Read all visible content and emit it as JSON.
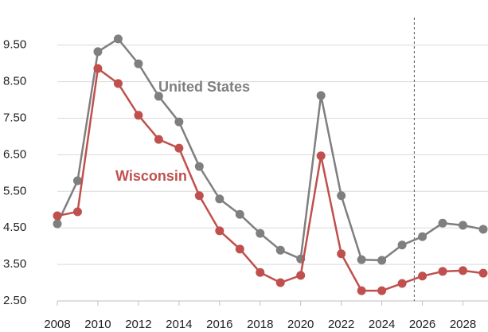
{
  "chart_data": {
    "type": "line",
    "x": [
      2008,
      2009,
      2010,
      2011,
      2012,
      2013,
      2014,
      2015,
      2016,
      2017,
      2018,
      2019,
      2020,
      2021,
      2022,
      2023,
      2024,
      2025,
      2026,
      2027,
      2028,
      2029
    ],
    "series": [
      {
        "name": "United States",
        "color": "#7f7f7f",
        "values": [
          4.61,
          5.79,
          9.32,
          9.67,
          8.99,
          8.1,
          7.4,
          6.18,
          5.29,
          4.87,
          4.35,
          3.89,
          3.65,
          8.12,
          5.38,
          3.63,
          3.61,
          4.03,
          4.26,
          4.63,
          4.57,
          4.46
        ]
      },
      {
        "name": "Wisconsin",
        "color": "#c0504d",
        "values": [
          4.83,
          4.94,
          8.86,
          8.45,
          7.58,
          6.92,
          6.68,
          5.38,
          4.42,
          3.92,
          3.28,
          3.0,
          3.2,
          6.47,
          3.79,
          2.78,
          2.78,
          2.98,
          3.18,
          3.31,
          3.33,
          3.26
        ]
      }
    ],
    "xlim": [
      2008,
      2029
    ],
    "xticks": [
      2008,
      2010,
      2012,
      2014,
      2016,
      2018,
      2020,
      2022,
      2024,
      2026,
      2028
    ],
    "ylim": [
      2.5,
      9.9
    ],
    "yticks": [
      {
        "value": 2.5,
        "label": "2.50"
      },
      {
        "value": 3.5,
        "label": "3.50"
      },
      {
        "value": 4.5,
        "label": "4.50"
      },
      {
        "value": 5.5,
        "label": "5.50"
      },
      {
        "value": 6.5,
        "label": "6.50"
      },
      {
        "value": 7.5,
        "label": "7.50"
      },
      {
        "value": 8.5,
        "label": "8.50"
      },
      {
        "value": 9.5,
        "label": "9.50"
      }
    ],
    "grid": true,
    "vline": 2025.6
  }
}
